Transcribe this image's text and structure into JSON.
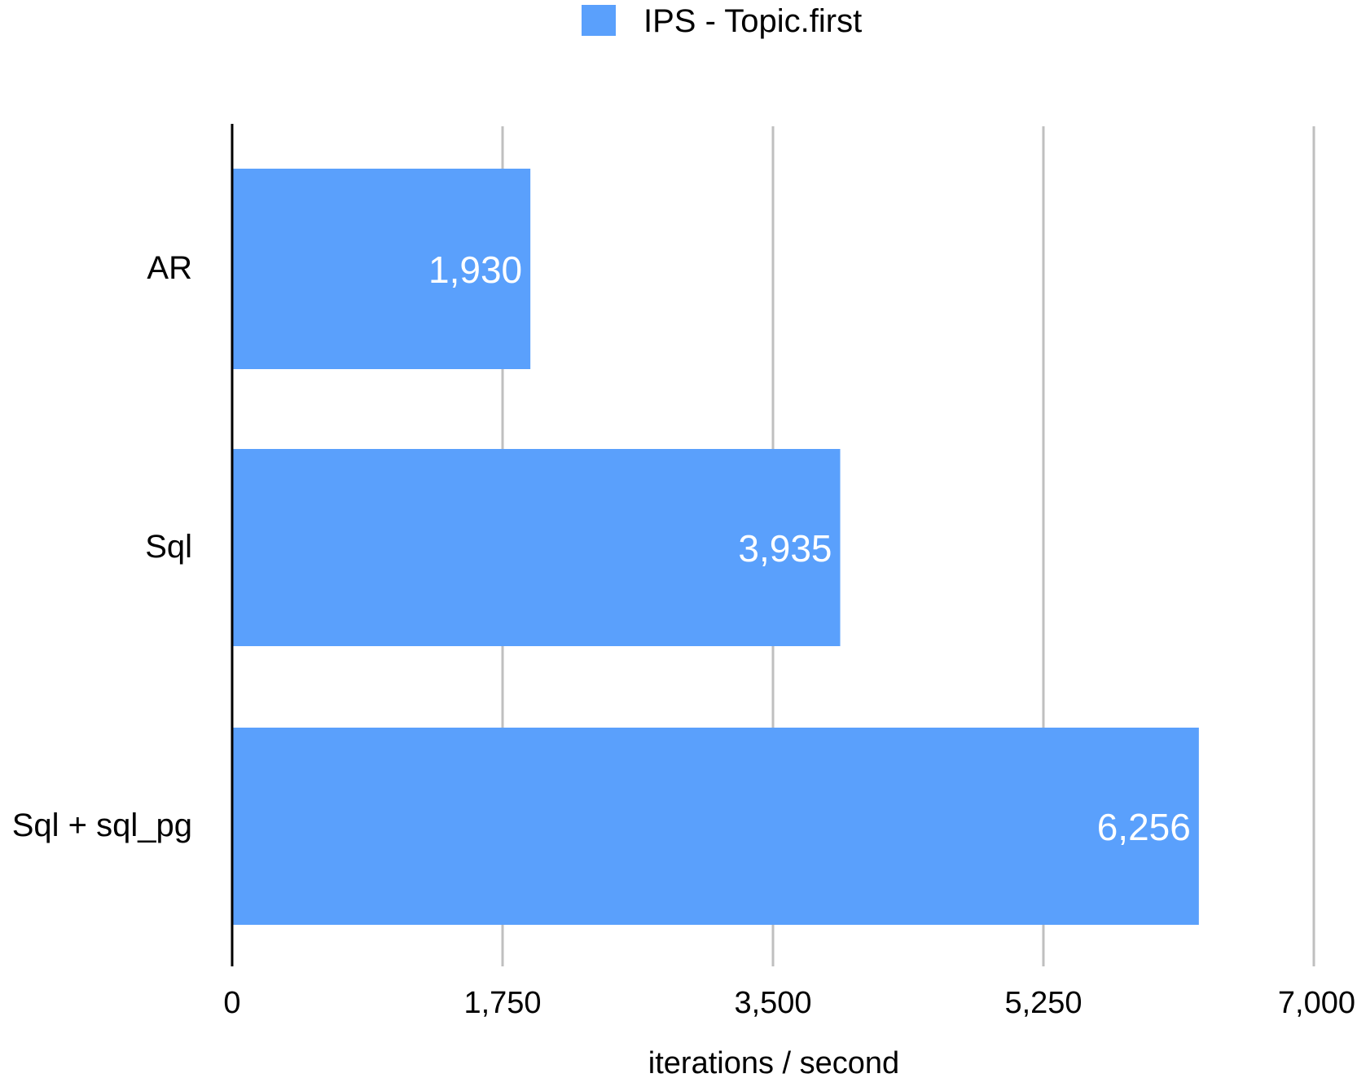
{
  "chart_data": {
    "type": "bar",
    "orientation": "horizontal",
    "categories": [
      "AR",
      "Sql",
      "Sql + sql_pg"
    ],
    "series": [
      {
        "name": "IPS - Topic.first",
        "values": [
          1930,
          3935,
          6256
        ],
        "color": "#5aa0fc"
      }
    ],
    "value_labels": [
      "1,930",
      "3,935",
      "6,256"
    ],
    "xlabel": "iterations / second",
    "xlim": [
      0,
      7000
    ],
    "x_ticks": [
      0,
      1750,
      3500,
      5250,
      7000
    ],
    "x_tick_labels": [
      "0",
      "1,750",
      "3,500",
      "5,250",
      "7,000"
    ],
    "grid": true,
    "grid_color": "#bfbfbf",
    "legend_position": "top-center"
  }
}
